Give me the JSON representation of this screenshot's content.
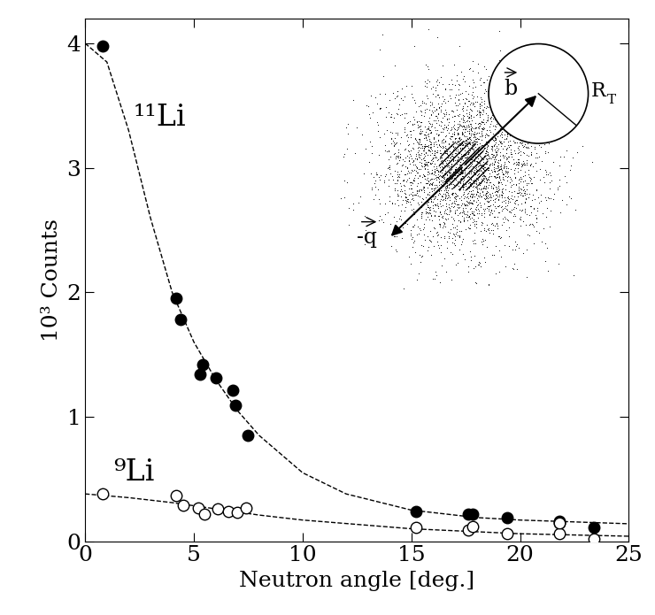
{
  "chart_data": {
    "type": "scatter",
    "x_label": "Neutron angle [deg.]",
    "y_label": "10³ Counts",
    "xlim": [
      0,
      25
    ],
    "xticks": [
      0,
      5,
      10,
      15,
      20,
      25
    ],
    "ylim": [
      0,
      4.2
    ],
    "yticks": [
      0,
      1,
      2,
      3,
      4
    ],
    "grid": false,
    "annotations": [
      "b",
      "RT",
      "-q"
    ],
    "series": [
      {
        "name": "¹¹Li",
        "color": "#000000",
        "marker": "filled",
        "x": [
          0.8,
          4.2,
          4.4,
          5.3,
          5.4,
          6.0,
          6.8,
          6.9,
          7.5,
          15.2,
          17.6,
          17.8,
          19.4,
          21.8,
          21.8,
          23.4
        ],
        "values": [
          3.98,
          1.95,
          1.78,
          1.34,
          1.42,
          1.31,
          1.21,
          1.09,
          0.85,
          0.24,
          0.22,
          0.22,
          0.19,
          0.16,
          0.15,
          0.11
        ],
        "fit": {
          "line_style": "dashed",
          "x": [
            0,
            1,
            2,
            3,
            4,
            5,
            6,
            7,
            8,
            10,
            12,
            15,
            18,
            20,
            25
          ],
          "values": [
            4.0,
            3.85,
            3.3,
            2.6,
            2.0,
            1.6,
            1.3,
            1.05,
            0.85,
            0.55,
            0.38,
            0.25,
            0.19,
            0.17,
            0.14
          ]
        }
      },
      {
        "name": "⁹Li",
        "color": "#000000",
        "marker": "open",
        "x": [
          0.8,
          4.2,
          4.5,
          5.2,
          5.5,
          6.1,
          6.6,
          7.0,
          7.4,
          15.2,
          17.6,
          17.8,
          19.4,
          21.8,
          21.8,
          23.4
        ],
        "values": [
          0.38,
          0.37,
          0.29,
          0.27,
          0.22,
          0.26,
          0.24,
          0.23,
          0.27,
          0.11,
          0.09,
          0.12,
          0.06,
          0.06,
          0.15,
          0.02
        ],
        "fit": {
          "line_style": "dashed",
          "x": [
            0,
            2,
            4,
            6,
            8,
            10,
            15,
            20,
            25
          ],
          "values": [
            0.38,
            0.35,
            0.31,
            0.26,
            0.21,
            0.17,
            0.1,
            0.06,
            0.04
          ]
        }
      }
    ]
  }
}
